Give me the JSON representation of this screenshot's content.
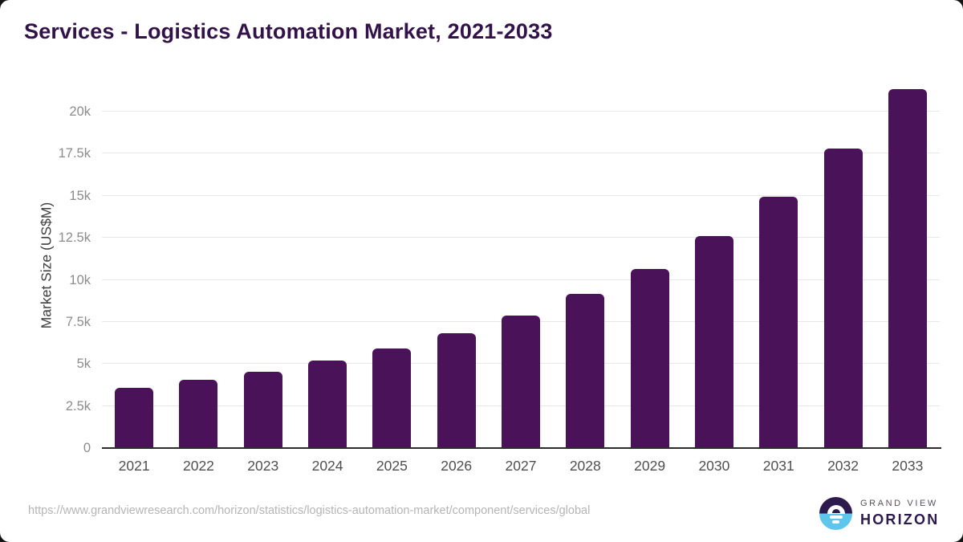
{
  "title": "Services - Logistics Automation Market, 2021-2033",
  "chart_data": {
    "type": "bar",
    "title": "Services - Logistics Automation Market, 2021-2033",
    "categories": [
      "2021",
      "2022",
      "2023",
      "2024",
      "2025",
      "2026",
      "2027",
      "2028",
      "2029",
      "2030",
      "2031",
      "2032",
      "2033"
    ],
    "values": [
      3580,
      4040,
      4550,
      5200,
      5900,
      6810,
      7870,
      9150,
      10660,
      12580,
      14930,
      17790,
      21330
    ],
    "xlabel": "",
    "ylabel": "Market Size (US$M)",
    "ylim": [
      0,
      21500
    ],
    "yticks": [
      0,
      2500,
      5000,
      7500,
      10000,
      12500,
      15000,
      17500,
      20000
    ],
    "ytick_labels": [
      "0",
      "2.5k",
      "5k",
      "7.5k",
      "10k",
      "12.5k",
      "15k",
      "17.5k",
      "20k"
    ],
    "bar_color": "#4a1259",
    "grid": true,
    "legend": false
  },
  "footer": {
    "source_url": "https://www.grandviewresearch.com/horizon/statistics/logistics-automation-market/component/services/global",
    "logo": {
      "brand_top": "GRAND VIEW",
      "brand_bottom": "HORIZON"
    }
  },
  "colors": {
    "bar": "#4a1259",
    "title": "#321249",
    "gridline": "#e8e8e8",
    "axis_line": "#2b2b2b",
    "ytick_text": "#8c8c8c",
    "xtick_text": "#4f4f4f",
    "url_text": "#b5b5b5",
    "logo_purple": "#2e1b4e",
    "logo_blue": "#5ec5ec"
  }
}
